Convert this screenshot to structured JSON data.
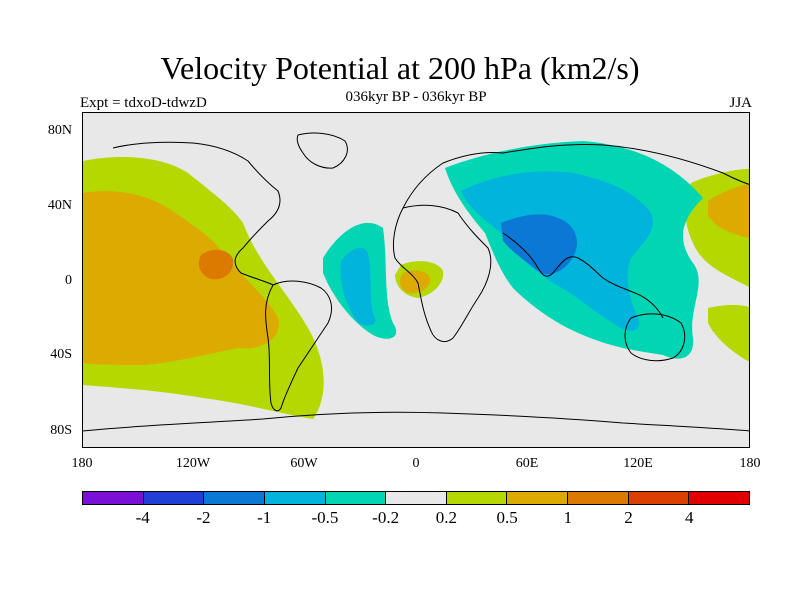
{
  "title": "Velocity Potential at 200 hPa (km2/s)",
  "subtitle": "036kyr BP - 036kyr BP",
  "left_label": "Expt = tdxoD-tdwzD",
  "right_label": "JJA",
  "lat_labels": [
    "80N",
    "40N",
    "0",
    "40S",
    "80S"
  ],
  "lon_labels": [
    "180",
    "120W",
    "60W",
    "0",
    "60E",
    "120E",
    "180"
  ],
  "colorbar": {
    "colors": [
      "#7a10d8",
      "#1f3fd6",
      "#0a78d4",
      "#00b4dc",
      "#00d6b4",
      "#e8e8e8",
      "#b4d800",
      "#dcaa00",
      "#dc7a00",
      "#dc4000",
      "#e00000"
    ],
    "labels": [
      "-4",
      "-2",
      "-1",
      "-0.5",
      "-0.2",
      "0.2",
      "0.5",
      "1",
      "2",
      "4"
    ]
  },
  "map": {
    "background_color": "#e8e8e8",
    "coastline_color": "#000000"
  }
}
